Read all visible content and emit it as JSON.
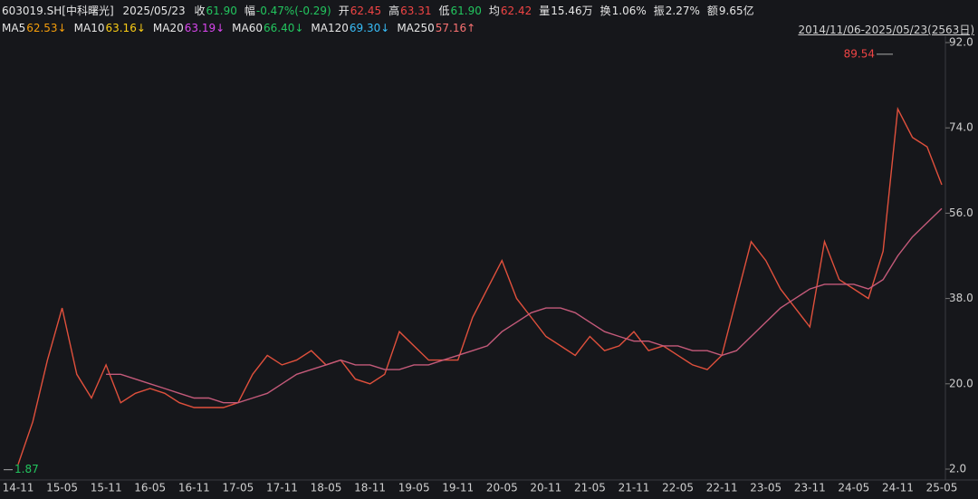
{
  "header": {
    "code": "603019.SH[中科曙光]",
    "date": "2025/05/23",
    "quotes": [
      {
        "label": "收",
        "value": "61.90",
        "color": "#22c55e"
      },
      {
        "label": "幅",
        "value": "-0.47%(-0.29)",
        "color": "#22c55e"
      },
      {
        "label": "开",
        "value": "62.45",
        "color": "#ef4444"
      },
      {
        "label": "高",
        "value": "63.31",
        "color": "#ef4444"
      },
      {
        "label": "低",
        "value": "61.90",
        "color": "#22c55e"
      },
      {
        "label": "均",
        "value": "62.42",
        "color": "#ef4444"
      },
      {
        "label": "量",
        "value": "15.46万",
        "color": "#e6e6e6"
      },
      {
        "label": "换",
        "value": "1.06%",
        "color": "#e6e6e6"
      },
      {
        "label": "振",
        "value": "2.27%",
        "color": "#e6e6e6"
      },
      {
        "label": "额",
        "value": "9.65亿",
        "color": "#e6e6e6"
      }
    ],
    "ma": [
      {
        "name": "MA5",
        "value": "62.53↓",
        "color": "#f59e0b"
      },
      {
        "name": "MA10",
        "value": "63.16↓",
        "color": "#facc15"
      },
      {
        "name": "MA20",
        "value": "63.19↓",
        "color": "#d946ef"
      },
      {
        "name": "MA60",
        "value": "66.40↓",
        "color": "#22c55e"
      },
      {
        "name": "MA120",
        "value": "69.30↓",
        "color": "#38bdf8"
      },
      {
        "name": "MA250",
        "value": "57.16↑",
        "color": "#f87171"
      }
    ],
    "range": "2014/11/06-2025/05/23(2563日)"
  },
  "chart_data": {
    "type": "line",
    "categories": [
      "14-11",
      null,
      null,
      "15-05",
      null,
      null,
      "15-11",
      null,
      null,
      "16-05",
      null,
      null,
      "16-11",
      null,
      null,
      "17-05",
      null,
      null,
      "17-11",
      null,
      null,
      "18-05",
      null,
      null,
      "18-11",
      null,
      null,
      "19-05",
      null,
      null,
      "19-11",
      null,
      null,
      "20-05",
      null,
      null,
      "20-11",
      null,
      null,
      "21-05",
      null,
      null,
      "21-11",
      null,
      null,
      "22-05",
      null,
      null,
      "22-11",
      null,
      null,
      "23-05",
      null,
      null,
      "23-11",
      null,
      null,
      "24-05",
      null,
      null,
      "24-11",
      null,
      null,
      "25-05"
    ],
    "series": [
      {
        "color": "#e0503c",
        "values": [
          3,
          12,
          25,
          36,
          22,
          17,
          24,
          16,
          18,
          19,
          18,
          16,
          15,
          15,
          15,
          16,
          22,
          26,
          24,
          25,
          27,
          24,
          25,
          21,
          20,
          22,
          31,
          28,
          25,
          25,
          25,
          34,
          40,
          46,
          38,
          34,
          30,
          28,
          26,
          30,
          27,
          28,
          31,
          27,
          28,
          26,
          24,
          23,
          26,
          38,
          50,
          46,
          40,
          36,
          32,
          50,
          42,
          40,
          38,
          48,
          78,
          72,
          70,
          62
        ]
      },
      {
        "color": "#c45a7a",
        "values": [
          null,
          null,
          null,
          null,
          null,
          null,
          22,
          22,
          21,
          20,
          19,
          18,
          17,
          17,
          16,
          16,
          17,
          18,
          20,
          22,
          23,
          24,
          25,
          24,
          24,
          23,
          23,
          24,
          24,
          25,
          26,
          27,
          28,
          31,
          33,
          35,
          36,
          36,
          35,
          33,
          31,
          30,
          29,
          29,
          28,
          28,
          27,
          27,
          26,
          27,
          30,
          33,
          36,
          38,
          40,
          41,
          41,
          41,
          40,
          42,
          47,
          51,
          54,
          57
        ]
      }
    ],
    "ylim": [
      2,
      92
    ],
    "yticks": [
      {
        "value": 2,
        "label": "2.0"
      },
      {
        "value": 20,
        "label": "20.0"
      },
      {
        "value": 38,
        "label": "38.0"
      },
      {
        "value": 56,
        "label": "56.0"
      },
      {
        "value": 74,
        "label": "74.0"
      },
      {
        "value": 92,
        "label": "92.0"
      }
    ],
    "annotations": [
      {
        "value": 89.54,
        "color": "#ef4444"
      },
      {
        "value": 1.87,
        "color": "#22c55e"
      }
    ]
  }
}
